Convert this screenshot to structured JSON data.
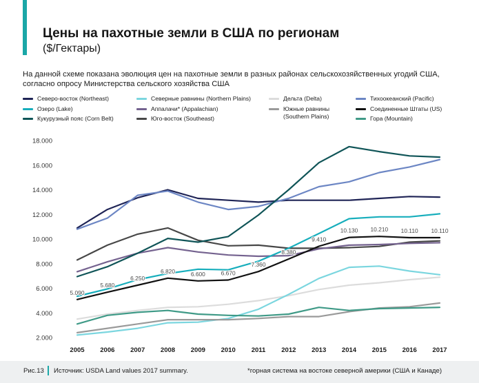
{
  "header": {
    "title": "Цены на пахотные земли в США по регионам",
    "subtitle": "($/Гектары)",
    "description": "На данной схеме показана эволюция цен на пахотные земли в разных районах сельскохозяйственных угодий США, согласно опросу Министерства сельского хозяйства США"
  },
  "footer": {
    "figure_number": "Рис.13",
    "source": "Источник: USDA Land values 2017 summary.",
    "footnote": "*горная система на востоке северной америки (США и Канаде)"
  },
  "legend": [
    {
      "label": "Северо-восток (Northeast)",
      "color": "#1f2456"
    },
    {
      "label": "Озеро (Lake)",
      "color": "#17aebc"
    },
    {
      "label": "Кукурузный пояс (Corn Belt)",
      "color": "#0f5457"
    },
    {
      "label": "Северные равнины (Northern Plains)",
      "color": "#7bd6df"
    },
    {
      "label": "Аппалачи* (Appalachian)",
      "color": "#74628f"
    },
    {
      "label": "Юго-восток (Southeast)",
      "color": "#474747"
    },
    {
      "label": "Дельта (Delta)",
      "color": "#dcdcdc"
    },
    {
      "label": "Южные равнины (Southern Plains)",
      "color": "#9a9a9a"
    },
    {
      "label": "Тихоокеанский (Pacific)",
      "color": "#6c86c4"
    },
    {
      "label": "Соединенные Штаты (US)",
      "color": "#111111"
    },
    {
      "label": "Гора (Mountain)",
      "color": "#3f9a87"
    }
  ],
  "chart_data": {
    "type": "line",
    "x": [
      "2005",
      "2006",
      "2007",
      "2008",
      "2009",
      "2010",
      "2011",
      "2012",
      "2013",
      "2014",
      "2015",
      "2016",
      "2017"
    ],
    "yticks": [
      "2.000",
      "4.000",
      "6.000",
      "8.000",
      "10.000",
      "12.000",
      "14.000",
      "16.000",
      "18.000"
    ],
    "ylim": [
      2000,
      18000
    ],
    "grid": false,
    "series": [
      {
        "name": "Дельта (Delta)",
        "color": "#dcdcdc",
        "values": [
          3500,
          3900,
          4200,
          4450,
          4500,
          4700,
          5000,
          5400,
          5900,
          6250,
          6450,
          6700,
          6900
        ]
      },
      {
        "name": "Северные равнины (Northern Plains)",
        "color": "#7bd6df",
        "values": [
          2200,
          2450,
          2750,
          3200,
          3250,
          3550,
          4300,
          5500,
          6800,
          7700,
          7800,
          7400,
          7100
        ]
      },
      {
        "name": "Южные равнины (Southern Plains)",
        "color": "#9a9a9a",
        "values": [
          2400,
          2750,
          3100,
          3450,
          3450,
          3450,
          3550,
          3700,
          3700,
          4100,
          4400,
          4500,
          4800
        ]
      },
      {
        "name": "Гора (Mountain)",
        "color": "#3f9a87",
        "values": [
          3100,
          3800,
          4050,
          4200,
          3900,
          3800,
          3750,
          3900,
          4450,
          4200,
          4350,
          4400,
          4450
        ]
      },
      {
        "name": "Юго-восток (Southeast)",
        "color": "#474747",
        "values": [
          8300,
          9500,
          10400,
          10900,
          9900,
          9450,
          9500,
          9250,
          9250,
          9300,
          9400,
          9750,
          9850
        ]
      },
      {
        "name": "Аппалачи* (Appalachian)",
        "color": "#74628f",
        "values": [
          7350,
          8150,
          8850,
          9300,
          8950,
          8700,
          8600,
          8650,
          9200,
          9500,
          9550,
          9650,
          9700
        ]
      },
      {
        "name": "Северо-восток (Northeast)",
        "color": "#1f2456",
        "values": [
          10900,
          12400,
          13350,
          14000,
          13300,
          13150,
          13000,
          13150,
          13150,
          13150,
          13300,
          13450,
          13400
        ]
      },
      {
        "name": "Тихоокеанский (Pacific)",
        "color": "#6c86c4",
        "values": [
          10800,
          11700,
          13550,
          13900,
          13000,
          12400,
          12650,
          13300,
          14250,
          14650,
          15400,
          15850,
          16450
        ]
      },
      {
        "name": "Кукурузный пояс (Corn Belt)",
        "color": "#0f5457",
        "values": [
          6950,
          7750,
          8850,
          10050,
          9750,
          10200,
          11950,
          14000,
          16200,
          17500,
          17100,
          16750,
          16650
        ]
      },
      {
        "name": "Озеро (Lake)",
        "color": "#17aebc",
        "values": [
          5350,
          5950,
          6700,
          7200,
          7550,
          7500,
          8200,
          9250,
          10450,
          11650,
          11800,
          11800,
          12050
        ]
      },
      {
        "name": "Соединенные Штаты (US)",
        "color": "#111111",
        "values": [
          5090,
          5680,
          6250,
          6820,
          6600,
          6670,
          7360,
          8380,
          9410,
          10130,
          10210,
          10110,
          10110
        ]
      }
    ],
    "data_labels": [
      {
        "x": "2005",
        "text": "5.090",
        "value": 5090
      },
      {
        "x": "2006",
        "text": "5.680",
        "value": 5680
      },
      {
        "x": "2007",
        "text": "6.250",
        "value": 6250
      },
      {
        "x": "2008",
        "text": "6.820",
        "value": 6820
      },
      {
        "x": "2009",
        "text": "6.600",
        "value": 6600
      },
      {
        "x": "2010",
        "text": "6.670",
        "value": 6670
      },
      {
        "x": "2011",
        "text": "7.360",
        "value": 7360
      },
      {
        "x": "2012",
        "text": "8.380",
        "value": 8380
      },
      {
        "x": "2013",
        "text": "9.410",
        "value": 9410
      },
      {
        "x": "2014",
        "text": "10.130",
        "value": 10130
      },
      {
        "x": "2015",
        "text": "10.210",
        "value": 10210
      },
      {
        "x": "2016",
        "text": "10.110",
        "value": 10110
      },
      {
        "x": "2017",
        "text": "10.110",
        "value": 10110
      }
    ]
  }
}
